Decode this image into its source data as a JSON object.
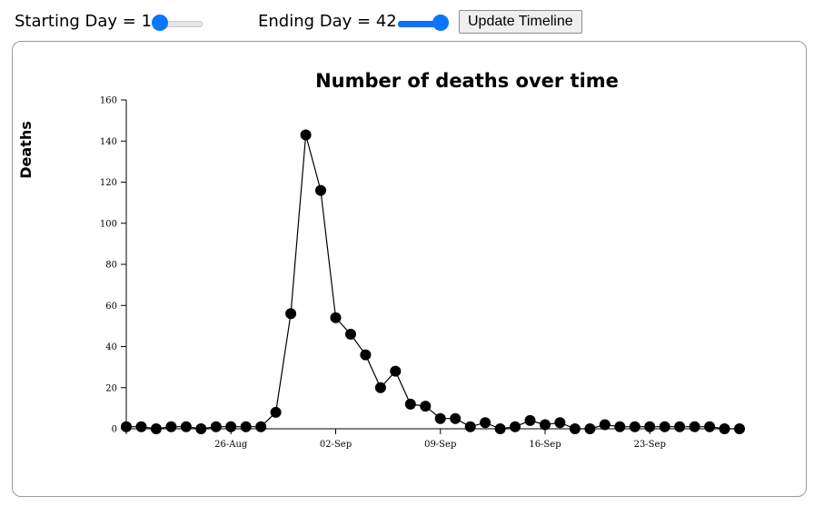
{
  "controls": {
    "start_label": "Starting Day = 1",
    "end_label": "Ending Day = 42",
    "start_slider": {
      "min": 1,
      "max": 42,
      "value": 1
    },
    "end_slider": {
      "min": 1,
      "max": 42,
      "value": 42
    },
    "update_button": "Update Timeline",
    "accent_color": "#0a75ff"
  },
  "chart_data": {
    "type": "line",
    "title": "Number of deaths over time",
    "xlabel": "",
    "ylabel": "Deaths",
    "ylim": [
      0,
      160
    ],
    "yticks": [
      0,
      20,
      40,
      60,
      80,
      100,
      120,
      140,
      160
    ],
    "xlim": [
      "2024-08-19",
      "2024-09-29"
    ],
    "xticks": [
      {
        "date": "2024-08-26",
        "label": "26-Aug"
      },
      {
        "date": "2024-09-02",
        "label": "02-Sep"
      },
      {
        "date": "2024-09-09",
        "label": "09-Sep"
      },
      {
        "date": "2024-09-16",
        "label": "16-Sep"
      },
      {
        "date": "2024-09-23",
        "label": "23-Sep"
      }
    ],
    "grid": false,
    "marker": "circle",
    "line_color": "#000000",
    "series": [
      {
        "x": [
          "2024-08-19",
          "2024-08-20",
          "2024-08-21",
          "2024-08-22",
          "2024-08-23",
          "2024-08-24",
          "2024-08-25",
          "2024-08-26",
          "2024-08-27",
          "2024-08-28",
          "2024-08-29",
          "2024-08-30",
          "2024-08-31",
          "2024-09-01",
          "2024-09-02",
          "2024-09-03",
          "2024-09-04",
          "2024-09-05",
          "2024-09-06",
          "2024-09-07",
          "2024-09-08",
          "2024-09-09",
          "2024-09-10",
          "2024-09-11",
          "2024-09-12",
          "2024-09-13",
          "2024-09-14",
          "2024-09-15",
          "2024-09-16",
          "2024-09-17",
          "2024-09-18",
          "2024-09-19",
          "2024-09-20",
          "2024-09-21",
          "2024-09-22",
          "2024-09-23",
          "2024-09-24",
          "2024-09-25",
          "2024-09-26",
          "2024-09-27",
          "2024-09-28",
          "2024-09-29"
        ],
        "values": [
          1,
          1,
          0,
          1,
          1,
          0,
          1,
          1,
          1,
          1,
          8,
          56,
          143,
          116,
          54,
          46,
          36,
          20,
          28,
          12,
          11,
          5,
          5,
          1,
          3,
          0,
          1,
          4,
          2,
          3,
          0,
          0,
          2,
          1,
          1,
          1,
          1,
          1,
          1,
          1,
          0,
          0
        ]
      }
    ]
  }
}
